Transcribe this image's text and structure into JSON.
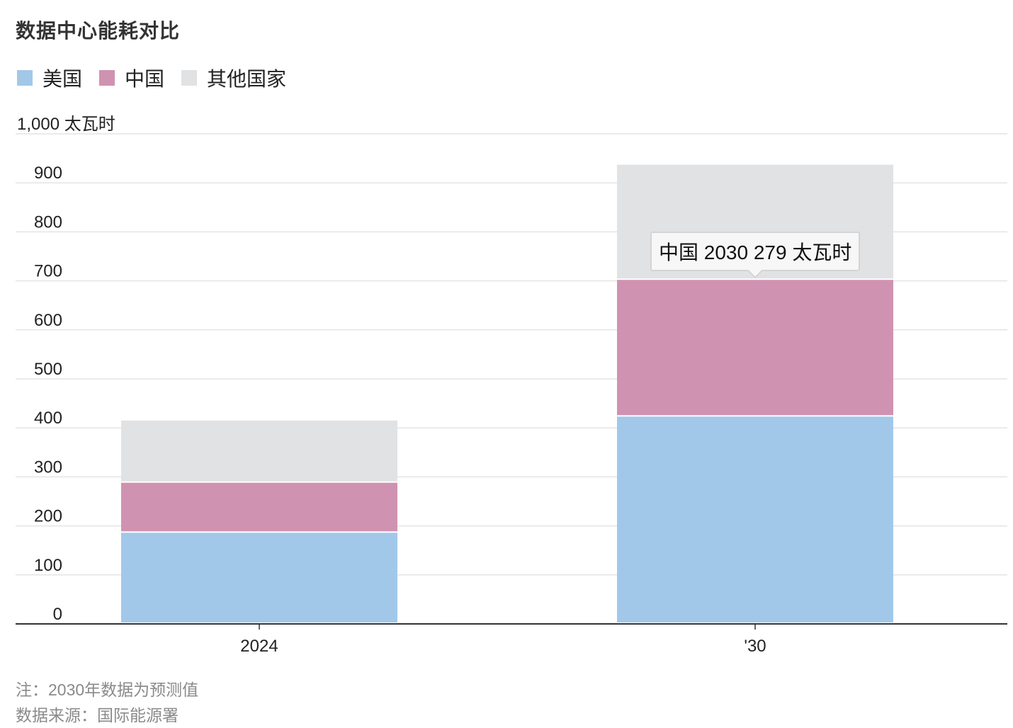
{
  "title": "数据中心能耗对比",
  "legend": [
    {
      "label": "美国",
      "color": "#a2c8e9"
    },
    {
      "label": "中国",
      "color": "#cf93b1"
    },
    {
      "label": "其他国家",
      "color": "#e1e2e4"
    }
  ],
  "tooltip": {
    "text": "中国 2030 279 太瓦时"
  },
  "notes": {
    "note": "注：2030年数据为预测值",
    "source": "数据来源：国际能源署"
  },
  "chart_data": {
    "type": "bar",
    "stacked": true,
    "categories": [
      "2024",
      "'30"
    ],
    "series": [
      {
        "name": "美国",
        "values": [
          186,
          423
        ],
        "color": "#a2c8e9"
      },
      {
        "name": "中国",
        "values": [
          102,
          279
        ],
        "color": "#cf93b1"
      },
      {
        "name": "其他国家",
        "values": [
          127,
          235
        ],
        "color": "#e1e2e4"
      }
    ],
    "ylim": [
      0,
      1000
    ],
    "yticks": [
      {
        "value": 0,
        "label": "0"
      },
      {
        "value": 100,
        "label": "100"
      },
      {
        "value": 200,
        "label": "200"
      },
      {
        "value": 300,
        "label": "300"
      },
      {
        "value": 400,
        "label": "400"
      },
      {
        "value": 500,
        "label": "500"
      },
      {
        "value": 600,
        "label": "600"
      },
      {
        "value": 700,
        "label": "700"
      },
      {
        "value": 800,
        "label": "800"
      },
      {
        "value": 900,
        "label": "900"
      },
      {
        "value": 1000,
        "label": "1,000 太瓦时"
      }
    ],
    "grid": true
  }
}
